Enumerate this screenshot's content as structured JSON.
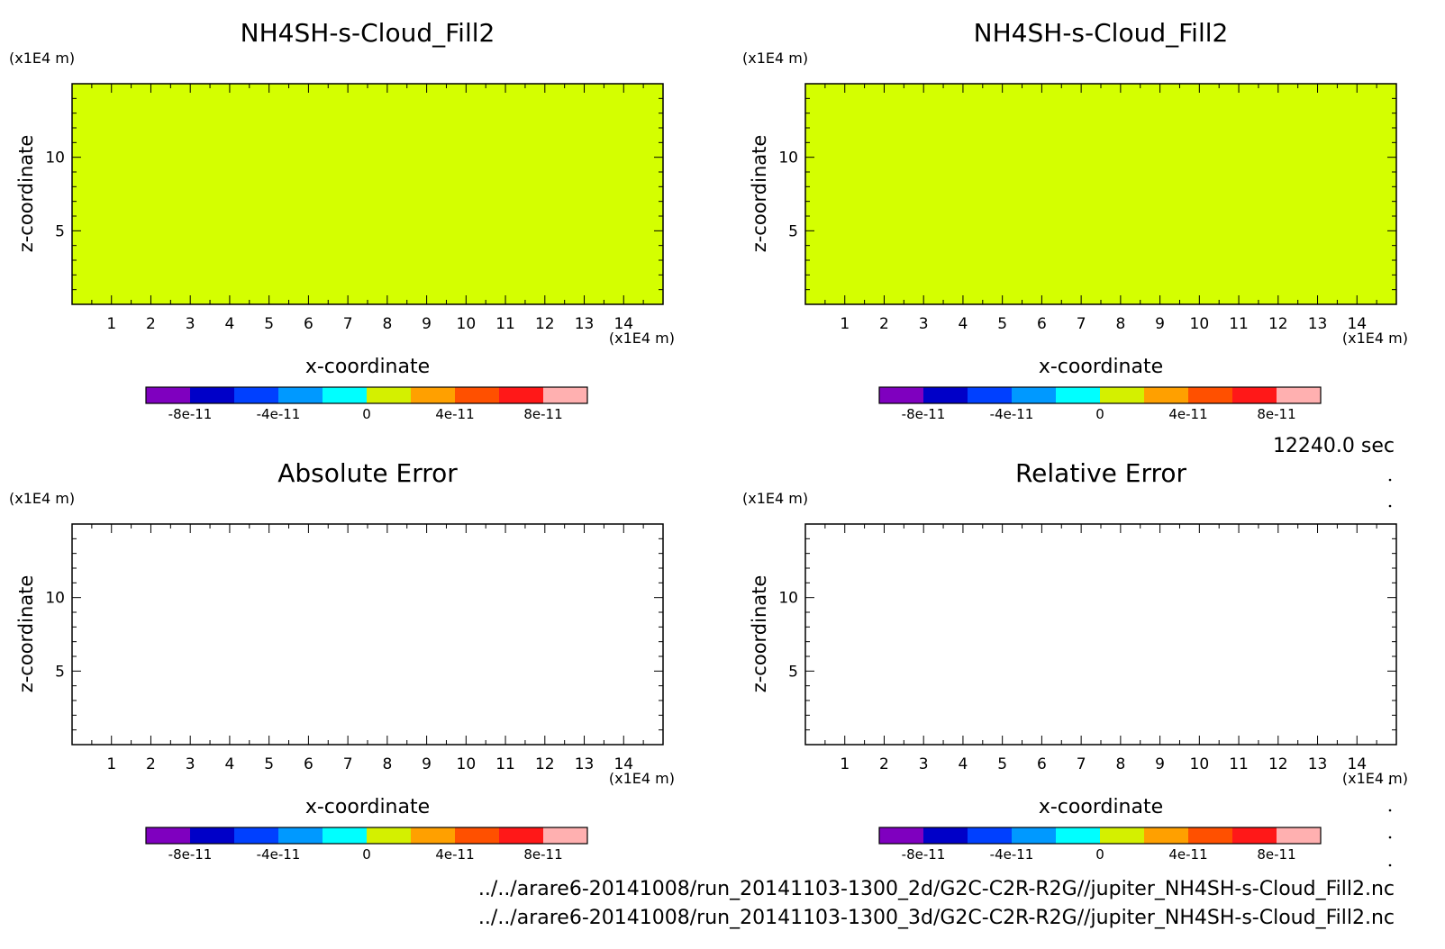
{
  "colorbar": {
    "colors": [
      "#7f00bf",
      "#0000c8",
      "#0040ff",
      "#0099ff",
      "#00ffff",
      "#d4f000",
      "#ffa000",
      "#ff5000",
      "#ff1818",
      "#ffb0b0"
    ],
    "labels": [
      "-8e-11",
      "-4e-11",
      "0",
      "4e-11",
      "8e-11"
    ]
  },
  "time_label": "12240.0 sec",
  "file_paths": [
    "../../arare6-20141008/run_20141103-1300_2d/G2C-C2R-R2G//jupiter_NH4SH-s-Cloud_Fill2.nc",
    "../../arare6-20141008/run_20141103-1300_3d/G2C-C2R-R2G//jupiter_NH4SH-s-Cloud_Fill2.nc"
  ],
  "chart_data": [
    {
      "type": "heatmap",
      "title": "NH4SH-s-Cloud_Fill2",
      "xlabel": "x-coordinate",
      "ylabel": "z-coordinate",
      "x_unit": "(x1E4 m)",
      "y_unit": "(x1E4 m)",
      "xlim": [
        0,
        15
      ],
      "ylim": [
        0,
        15
      ],
      "xticks": [
        1,
        2,
        3,
        4,
        5,
        6,
        7,
        8,
        9,
        10,
        11,
        12,
        13,
        14
      ],
      "yticks": [
        5,
        10
      ],
      "uniform_value": 0,
      "fill_color": "#d4ff00"
    },
    {
      "type": "heatmap",
      "title": "NH4SH-s-Cloud_Fill2",
      "xlabel": "x-coordinate",
      "ylabel": "z-coordinate",
      "x_unit": "(x1E4 m)",
      "y_unit": "(x1E4 m)",
      "xlim": [
        0,
        15
      ],
      "ylim": [
        0,
        15
      ],
      "xticks": [
        1,
        2,
        3,
        4,
        5,
        6,
        7,
        8,
        9,
        10,
        11,
        12,
        13,
        14
      ],
      "yticks": [
        5,
        10
      ],
      "uniform_value": 0,
      "fill_color": "#d4ff00"
    },
    {
      "type": "heatmap",
      "title": "Absolute Error",
      "xlabel": "x-coordinate",
      "ylabel": "z-coordinate",
      "x_unit": "(x1E4 m)",
      "y_unit": "(x1E4 m)",
      "xlim": [
        0,
        15
      ],
      "ylim": [
        0,
        15
      ],
      "xticks": [
        1,
        2,
        3,
        4,
        5,
        6,
        7,
        8,
        9,
        10,
        11,
        12,
        13,
        14
      ],
      "yticks": [
        5,
        10
      ],
      "uniform_value": null,
      "fill_color": "#ffffff"
    },
    {
      "type": "heatmap",
      "title": "Relative Error",
      "xlabel": "x-coordinate",
      "ylabel": "z-coordinate",
      "x_unit": "(x1E4 m)",
      "y_unit": "(x1E4 m)",
      "xlim": [
        0,
        15
      ],
      "ylim": [
        0,
        15
      ],
      "xticks": [
        1,
        2,
        3,
        4,
        5,
        6,
        7,
        8,
        9,
        10,
        11,
        12,
        13,
        14
      ],
      "yticks": [
        5,
        10
      ],
      "uniform_value": null,
      "fill_color": "#ffffff"
    }
  ]
}
